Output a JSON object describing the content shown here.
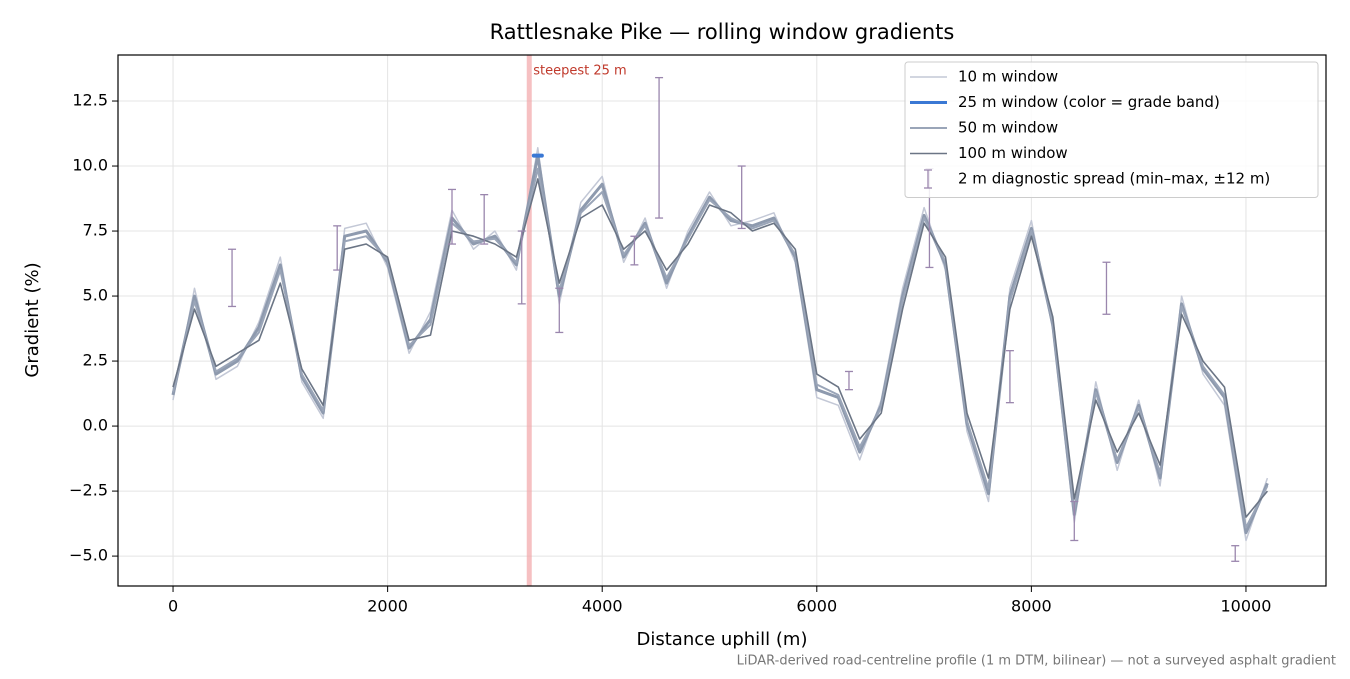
{
  "chart_data": {
    "type": "line",
    "title": "Rattlesnake Pike — rolling window gradients",
    "xlabel": "Distance uphill (m)",
    "ylabel": "Gradient (%)",
    "footer": "LiDAR-derived road-centreline profile (1 m DTM, bilinear) — not a surveyed asphalt gradient",
    "xlim": [
      -513,
      10746
    ],
    "ylim": [
      -6.15,
      14.27
    ],
    "xticks": [
      0,
      2000,
      4000,
      6000,
      8000,
      10000
    ],
    "yticks": [
      {
        "value": -5.0,
        "label": "−5.0"
      },
      {
        "value": -2.5,
        "label": "−2.5"
      },
      {
        "value": 0,
        "label": "0.0"
      },
      2.5,
      {
        "value": 5,
        "label": "5.0"
      },
      7.5,
      {
        "value": 10,
        "label": "10.0"
      },
      12.5
    ],
    "grid": true,
    "legend": "upper right",
    "x": [
      0,
      200,
      400,
      600,
      800,
      1000,
      1200,
      1400,
      1600,
      1800,
      2000,
      2200,
      2400,
      2600,
      2800,
      3000,
      3200,
      3400,
      3600,
      3800,
      4000,
      4200,
      4400,
      4600,
      4800,
      5000,
      5200,
      5400,
      5600,
      5800,
      6000,
      6200,
      6400,
      6600,
      6800,
      7000,
      7200,
      7400,
      7600,
      7800,
      8000,
      8200,
      8400,
      8600,
      8800,
      9000,
      9200,
      9400,
      9600,
      9800,
      10000,
      10200
    ],
    "series": [
      {
        "name": "10 m window",
        "color": "#c3c8d6",
        "width": 1.5,
        "values": [
          1.0,
          5.3,
          1.8,
          2.3,
          4.0,
          6.5,
          1.7,
          0.3,
          7.6,
          7.8,
          6.1,
          2.8,
          4.4,
          8.3,
          6.8,
          7.5,
          6.0,
          10.7,
          4.7,
          8.6,
          9.6,
          6.3,
          8.0,
          5.3,
          7.5,
          9.0,
          7.7,
          7.9,
          8.2,
          6.3,
          1.1,
          0.8,
          -1.3,
          1.0,
          5.3,
          8.4,
          6.0,
          -0.2,
          -2.9,
          5.3,
          7.9,
          3.7,
          -3.7,
          1.7,
          -1.7,
          1.0,
          -2.3,
          5.0,
          2.0,
          0.8,
          -4.4,
          -2.0
        ]
      },
      {
        "name": "25 m window (color = grade band)",
        "color": "#3a78d4",
        "base_color": "#8e9aae",
        "band_threshold": 10,
        "width": 3,
        "values": [
          1.2,
          5.0,
          2.0,
          2.5,
          3.8,
          6.2,
          1.9,
          0.5,
          7.3,
          7.5,
          6.3,
          3.0,
          4.1,
          8.0,
          7.0,
          7.3,
          6.2,
          10.4,
          5.0,
          8.3,
          9.3,
          6.5,
          7.8,
          5.5,
          7.3,
          8.8,
          7.9,
          7.7,
          8.0,
          6.5,
          1.4,
          1.1,
          -1.0,
          0.8,
          5.0,
          8.1,
          6.2,
          0.1,
          -2.6,
          5.0,
          7.6,
          3.9,
          -3.4,
          1.4,
          -1.4,
          0.8,
          -2.0,
          4.7,
          2.2,
          1.1,
          -4.1,
          -2.2
        ]
      },
      {
        "name": "50 m window",
        "color": "#9aa5b8",
        "width": 2,
        "values": [
          1.3,
          4.8,
          2.1,
          2.6,
          3.6,
          6.0,
          2.0,
          0.6,
          7.1,
          7.3,
          6.4,
          3.1,
          3.9,
          7.8,
          7.1,
          7.2,
          6.3,
          9.9,
          5.2,
          8.2,
          9.0,
          6.6,
          7.7,
          5.7,
          7.2,
          8.7,
          8.0,
          7.6,
          7.9,
          6.6,
          1.6,
          1.2,
          -0.8,
          0.7,
          4.8,
          8.0,
          6.3,
          0.2,
          -2.4,
          4.8,
          7.5,
          4.0,
          -3.2,
          1.3,
          -1.3,
          0.7,
          -1.8,
          4.6,
          2.3,
          1.2,
          -3.9,
          -2.3
        ]
      },
      {
        "name": "100 m window",
        "color": "#6b7585",
        "width": 1.6,
        "values": [
          1.5,
          4.5,
          2.3,
          2.8,
          3.3,
          5.5,
          2.2,
          0.8,
          6.8,
          7.0,
          6.5,
          3.3,
          3.5,
          7.5,
          7.3,
          7.0,
          6.5,
          9.5,
          5.5,
          8.0,
          8.5,
          6.8,
          7.5,
          6.0,
          7.0,
          8.5,
          8.2,
          7.5,
          7.8,
          6.8,
          2.0,
          1.5,
          -0.5,
          0.5,
          4.5,
          7.8,
          6.5,
          0.5,
          -2.0,
          4.5,
          7.3,
          4.2,
          -2.8,
          1.0,
          -1.0,
          0.5,
          -1.5,
          4.3,
          2.5,
          1.5,
          -3.5,
          -2.5
        ]
      }
    ],
    "spread": {
      "name": "2 m diagnostic spread (min–max, ±12 m)",
      "color": "#9a86ad",
      "x": [
        550,
        1530,
        2600,
        2900,
        3250,
        3600,
        4300,
        4530,
        5300,
        6300,
        7050,
        7800,
        8400,
        8700,
        9900
      ],
      "low": [
        4.6,
        6.0,
        7.0,
        7.0,
        4.7,
        3.6,
        6.2,
        8.0,
        7.6,
        1.4,
        6.1,
        0.9,
        -4.4,
        4.3,
        -5.2
      ],
      "high": [
        6.8,
        7.7,
        9.1,
        8.9,
        7.5,
        5.3,
        7.3,
        13.4,
        10.0,
        2.1,
        9.9,
        2.9,
        -2.9,
        6.3,
        -4.6
      ]
    },
    "annotations": [
      {
        "text": "steepest 25 m",
        "x": 3320,
        "color": "#c0392b",
        "band_color": "#f2a5a8"
      }
    ]
  }
}
